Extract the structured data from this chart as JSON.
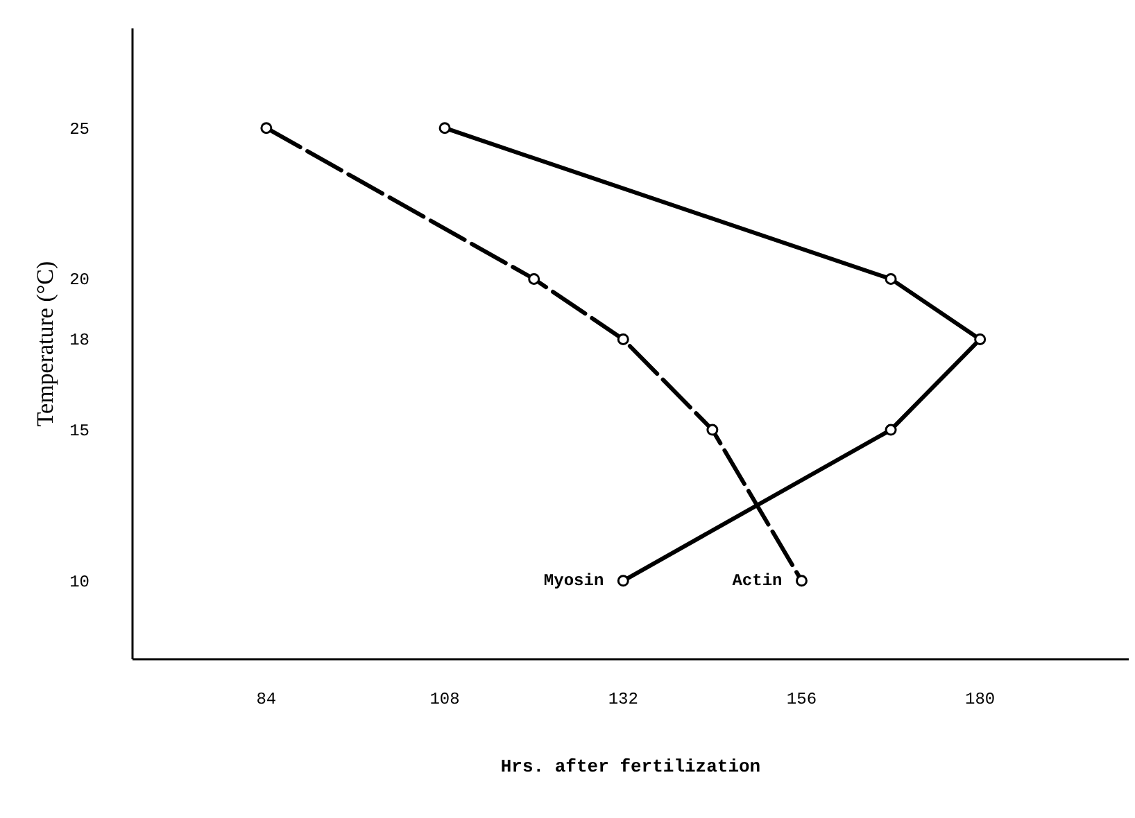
{
  "chart_data": {
    "type": "line",
    "xlabel": "Hrs. after fertilization",
    "ylabel": "Temperature (°C)",
    "xlim": [
      66,
      200
    ],
    "ylim": [
      7.4,
      28.3
    ],
    "xticks": [
      84,
      108,
      132,
      156,
      180
    ],
    "yticks": [
      10,
      15,
      18,
      20,
      25
    ],
    "marker": "circle",
    "grid": false,
    "series": [
      {
        "name": "Actin",
        "color": "#000000",
        "line_style": "dashed",
        "x": [
          84,
          120,
          132,
          144,
          156
        ],
        "values": [
          25,
          20,
          18,
          15,
          10
        ]
      },
      {
        "name": "Myosin",
        "color": "#000000",
        "line_style": "solid",
        "x": [
          108,
          168,
          180,
          168,
          132
        ],
        "values": [
          25,
          20,
          18,
          15,
          10
        ]
      }
    ]
  }
}
